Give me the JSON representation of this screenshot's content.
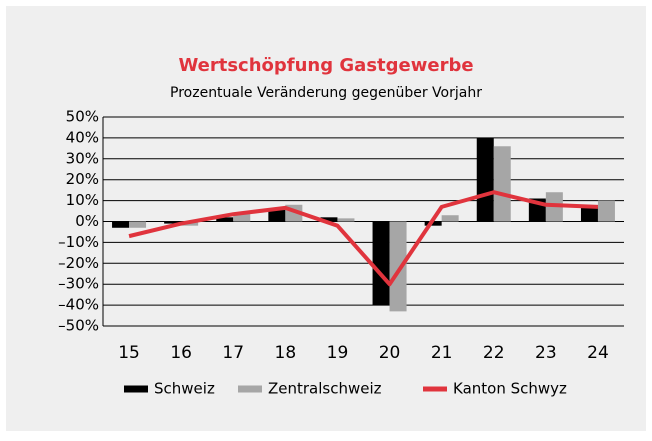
{
  "chart_data": {
    "type": "bar_line",
    "title": "Wertschöpfung Gastgewerbe",
    "subtitle": "Prozentuale Veränderung gegenüber Vorjahr",
    "categories": [
      "15",
      "16",
      "17",
      "18",
      "19",
      "20",
      "21",
      "22",
      "23",
      "24"
    ],
    "series": [
      {
        "name": "Schweiz",
        "color": "#000000",
        "kind": "bar",
        "values": [
          -3,
          -1,
          2,
          6,
          2,
          -40,
          -2,
          40,
          11,
          7
        ]
      },
      {
        "name": "Zentralschweiz",
        "color": "#a6a6a6",
        "kind": "bar",
        "values": [
          -3,
          -2,
          4,
          8,
          1.5,
          -43,
          3,
          36,
          14,
          10
        ]
      },
      {
        "name": "Kanton Schwyz",
        "color": "#e0343d",
        "kind": "line",
        "values": [
          -7,
          -1,
          3.5,
          6.5,
          -2,
          -30,
          7,
          14,
          8,
          7
        ]
      }
    ],
    "ylim": [
      -50,
      50
    ],
    "yticks": [
      {
        "value": -50,
        "label": "–50%"
      },
      {
        "value": -40,
        "label": "–40%"
      },
      {
        "value": -30,
        "label": "–30%"
      },
      {
        "value": -20,
        "label": "–20%"
      },
      {
        "value": -10,
        "label": "–10%"
      },
      {
        "value": 0,
        "label": "0%"
      },
      {
        "value": 10,
        "label": "10%"
      },
      {
        "value": 20,
        "label": "20%"
      },
      {
        "value": 30,
        "label": "30%"
      },
      {
        "value": 40,
        "label": "40%"
      },
      {
        "value": 50,
        "label": "50%"
      }
    ],
    "grid": true,
    "legend": "bottom"
  }
}
